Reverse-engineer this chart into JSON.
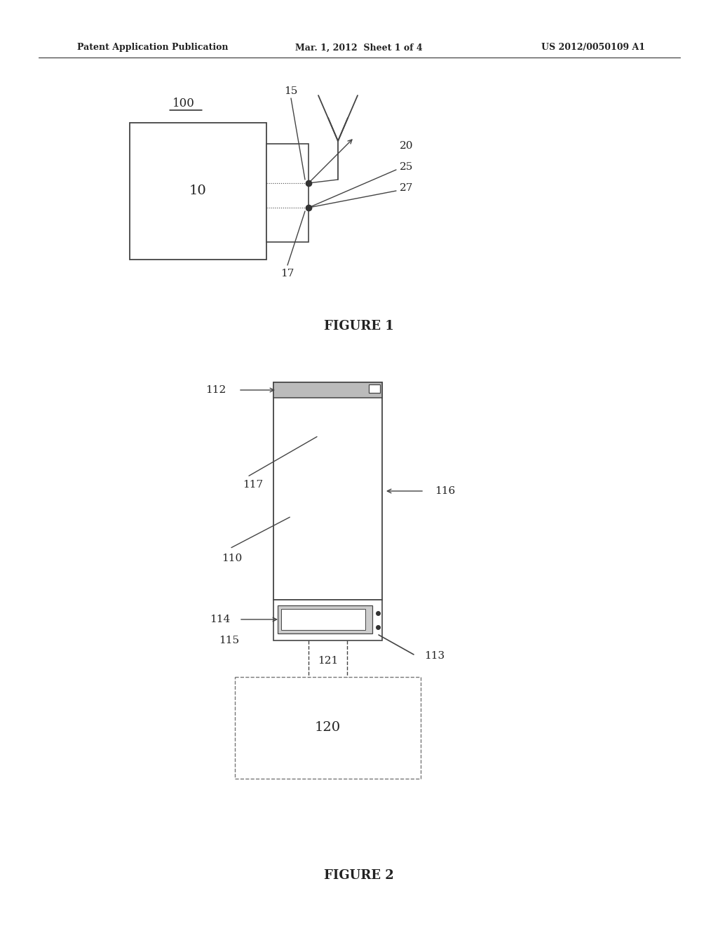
{
  "background_color": "#ffffff",
  "header_left": "Patent Application Publication",
  "header_mid": "Mar. 1, 2012  Sheet 1 of 4",
  "header_right": "US 2012/0050109 A1",
  "fig1_label": "FIGURE 1",
  "fig2_label": "FIGURE 2",
  "line_color": "#444444",
  "text_color": "#222222"
}
